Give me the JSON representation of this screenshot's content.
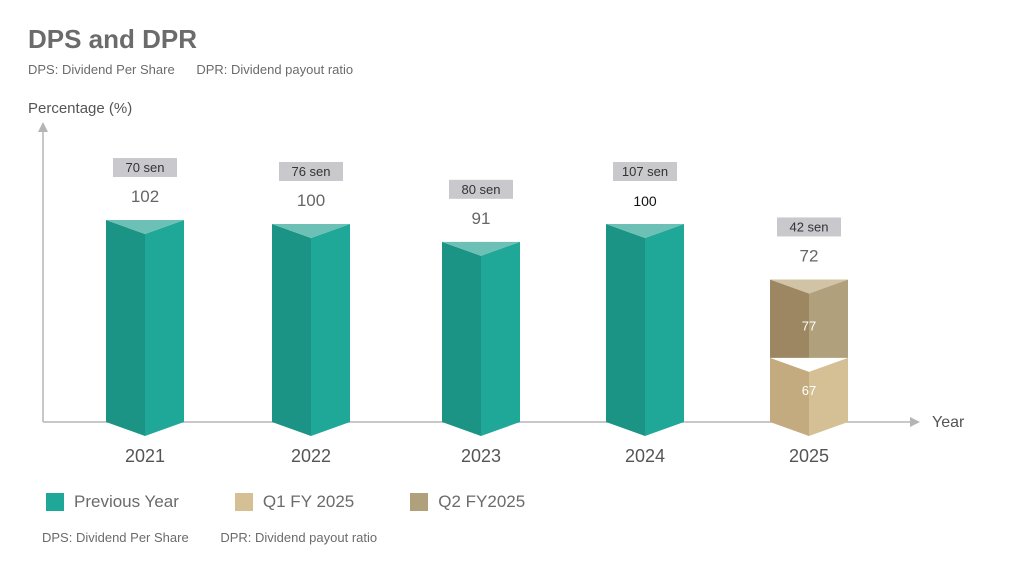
{
  "chart_data": {
    "type": "bar",
    "title": "DPS and DPR",
    "subtitle": [
      "DPS: Dividend Per Share",
      "DPR: Dividend payout ratio"
    ],
    "ylabel": "Percentage (%)",
    "xlabel": "Year",
    "ylim": [
      0,
      110
    ],
    "categories": [
      "2021",
      "2022",
      "2023",
      "2024",
      "2025"
    ],
    "series": [
      {
        "name": "Previous Year",
        "color": "#1fa898",
        "values": [
          102,
          100,
          91,
          100,
          null
        ]
      },
      {
        "name": "Q1 FY 2025",
        "color": "#c9b186",
        "values": [
          null,
          null,
          null,
          null,
          67
        ]
      },
      {
        "name": "Q2 FY2025",
        "color": "#b0a07c",
        "values": [
          null,
          null,
          null,
          null,
          77
        ]
      }
    ],
    "dpr_labels": [
      "102",
      "100",
      "91",
      "100",
      "72"
    ],
    "dps_labels": [
      "70 sen",
      "76 sen",
      "80 sen",
      "107 sen",
      "42 sen"
    ],
    "segment_labels_2025": [
      "67",
      "77"
    ],
    "footnote": [
      "DPS: Dividend Per Share",
      "DPR: Dividend payout ratio"
    ]
  }
}
